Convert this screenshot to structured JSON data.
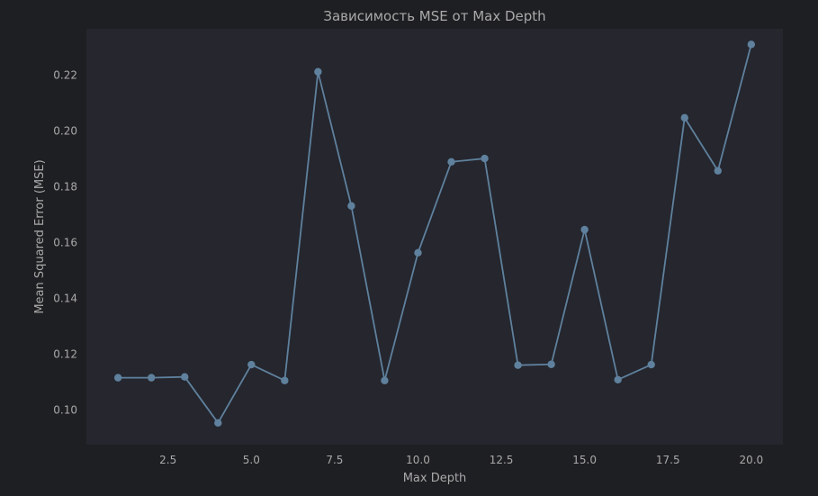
{
  "colors": {
    "figure_bg": "#1e1f22",
    "plot_bg": "#25262e",
    "series": "#5f819d",
    "text": "#a9a9a9"
  },
  "chart_data": {
    "type": "line",
    "title": "Зависимость MSE от Max Depth",
    "xlabel": "Max Depth",
    "ylabel": "Mean Squared Error (MSE)",
    "xlim": [
      0.05,
      20.95
    ],
    "ylim": [
      0.0875,
      0.2366
    ],
    "xticks": [
      2.5,
      5.0,
      7.5,
      10.0,
      12.5,
      15.0,
      17.5,
      20.0
    ],
    "xtick_labels": [
      "2.5",
      "5.0",
      "7.5",
      "10.0",
      "12.5",
      "15.0",
      "17.5",
      "20.0"
    ],
    "yticks": [
      0.1,
      0.12,
      0.14,
      0.16,
      0.18,
      0.2,
      0.22
    ],
    "ytick_labels": [
      "0.10",
      "0.12",
      "0.14",
      "0.16",
      "0.18",
      "0.20",
      "0.22"
    ],
    "grid": false,
    "markers": "circle",
    "x": [
      1,
      2,
      3,
      4,
      5,
      6,
      7,
      8,
      9,
      10,
      11,
      12,
      13,
      14,
      15,
      16,
      17,
      18,
      19,
      20
    ],
    "y": [
      0.1115,
      0.1115,
      0.1118,
      0.0953,
      0.1162,
      0.1105,
      0.2212,
      0.1731,
      0.1105,
      0.1563,
      0.1889,
      0.1901,
      0.116,
      0.1163,
      0.1646,
      0.1108,
      0.1162,
      0.2047,
      0.1857,
      0.231
    ]
  }
}
